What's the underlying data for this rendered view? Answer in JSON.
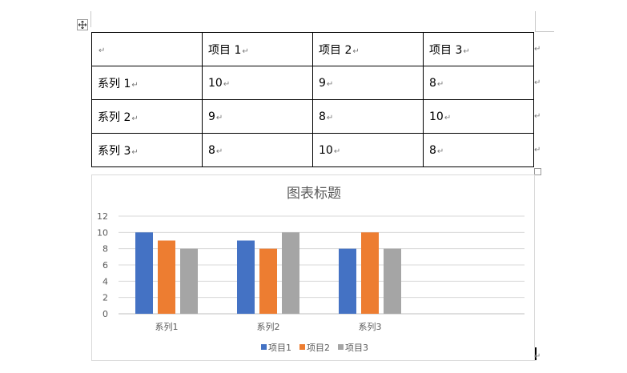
{
  "table": {
    "header": [
      "",
      "项目 1",
      "项目 2",
      "项目 3"
    ],
    "rows": [
      [
        "系列 1",
        "10",
        "9",
        "8"
      ],
      [
        "系列 2",
        "9",
        "8",
        "10"
      ],
      [
        "系列 3",
        "8",
        "10",
        "8"
      ]
    ],
    "paragraph_mark": "↵"
  },
  "chart_data": {
    "type": "bar",
    "title": "图表标题",
    "categories": [
      "系列1",
      "系列2",
      "系列3"
    ],
    "series": [
      {
        "name": "项目1",
        "values": [
          10,
          9,
          8
        ],
        "color": "#4472c4"
      },
      {
        "name": "项目2",
        "values": [
          9,
          8,
          10
        ],
        "color": "#ed7d31"
      },
      {
        "name": "项目3",
        "values": [
          8,
          10,
          8
        ],
        "color": "#a5a5a5"
      }
    ],
    "ylim": [
      0,
      12
    ],
    "yticks": [
      "0",
      "2",
      "4",
      "6",
      "8",
      "10",
      "12"
    ],
    "grid": true,
    "legend": "bottom"
  }
}
